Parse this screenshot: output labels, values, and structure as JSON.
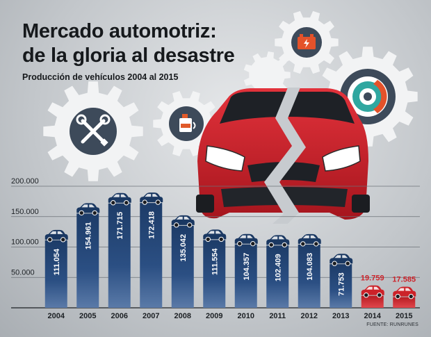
{
  "header": {
    "title_line1": "Mercado automotriz:",
    "title_line2": "de la gloria al desastre",
    "subtitle": "Producción de vehículos 2004 al 2015"
  },
  "footer": {
    "source": "FUENTE: RUNRUNES"
  },
  "colors": {
    "bar_primary": "#23477a",
    "bar_primary_dark": "#1a3862",
    "bar_decline": "#cc2229",
    "label_decline": "#cc2229",
    "gear": "#f2f3f4",
    "gear_hub": "#3d4a5a",
    "car_body": "#c9222c"
  },
  "icons": [
    "wrench-tools-icon",
    "oil-bottle-icon",
    "car-battery-icon",
    "brake-disc-icon",
    "car-icon"
  ],
  "chart_data": {
    "type": "bar",
    "categories": [
      "2004",
      "2005",
      "2006",
      "2007",
      "2008",
      "2009",
      "2010",
      "2011",
      "2012",
      "2013",
      "2014",
      "2015"
    ],
    "values": [
      111054,
      154961,
      171715,
      172418,
      135042,
      111554,
      104357,
      102409,
      104083,
      71753,
      19759,
      17585
    ],
    "value_labels": [
      "111.054",
      "154.961",
      "171.715",
      "172.418",
      "135.042",
      "111.554",
      "104.357",
      "102.409",
      "104.083",
      "71.753",
      "19.759",
      "17.585"
    ],
    "highlight": [
      false,
      false,
      false,
      false,
      false,
      false,
      false,
      false,
      false,
      false,
      true,
      true
    ],
    "title": "Mercado automotriz: de la gloria al desastre",
    "subtitle": "Producción de vehículos 2004 al 2015",
    "xlabel": "",
    "ylabel": "",
    "ylim": [
      0,
      200000
    ],
    "yticks": [
      0,
      50000,
      100000,
      150000,
      200000
    ],
    "ytick_labels": [
      "",
      "50.000",
      "100.000",
      "150.000",
      "200.000"
    ],
    "grid": true,
    "legend": "none"
  }
}
